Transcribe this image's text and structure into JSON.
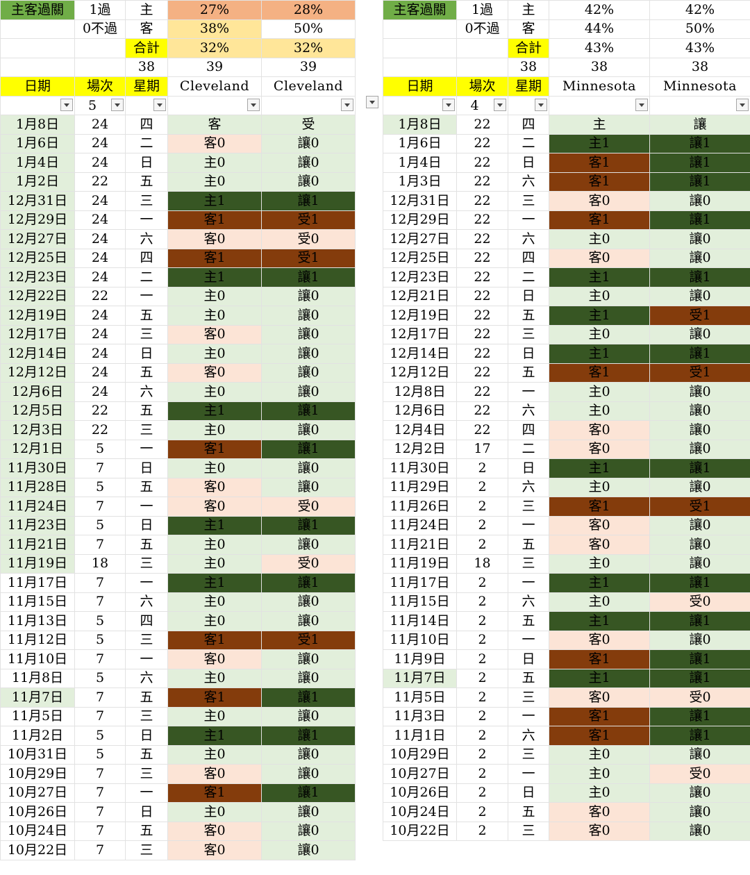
{
  "left": {
    "summary": {
      "title": "主客過關",
      "r1": {
        "label": "1過",
        "tag": "主",
        "p1": "27%",
        "p2": "28%"
      },
      "r2": {
        "label": "0不過",
        "tag": "客",
        "p1": "38%",
        "p2": "50%"
      },
      "r3": {
        "tag": "合計",
        "p1": "32%",
        "p2": "32%"
      },
      "r4": {
        "n0": "38",
        "n1": "39",
        "n2": "39"
      }
    },
    "headers": {
      "date": "日期",
      "game": "場次",
      "weekday": "星期",
      "team1": "Cleveland",
      "team2": "Cleveland"
    },
    "filter": {
      "game": "5"
    },
    "rows": [
      {
        "date": "1月8日",
        "game": "24",
        "wd": "四",
        "a": "客",
        "b": "受",
        "ac": "c-light",
        "bc": "c-light",
        "dg": true
      },
      {
        "date": "1月6日",
        "game": "24",
        "wd": "二",
        "a": "客0",
        "b": "讓0",
        "ac": "c-pink",
        "bc": "c-light",
        "dg": true
      },
      {
        "date": "1月4日",
        "game": "24",
        "wd": "日",
        "a": "主0",
        "b": "讓0",
        "ac": "c-light",
        "bc": "c-light",
        "dg": true
      },
      {
        "date": "1月2日",
        "game": "22",
        "wd": "五",
        "a": "主0",
        "b": "讓0",
        "ac": "c-light",
        "bc": "c-light",
        "dg": true
      },
      {
        "date": "12月31日",
        "game": "24",
        "wd": "三",
        "a": "主1",
        "b": "讓1",
        "ac": "c-dark",
        "bc": "c-dark",
        "dg": true
      },
      {
        "date": "12月29日",
        "game": "24",
        "wd": "一",
        "a": "客1",
        "b": "受1",
        "ac": "c-brown",
        "bc": "c-brown",
        "dg": true
      },
      {
        "date": "12月27日",
        "game": "24",
        "wd": "六",
        "a": "客0",
        "b": "受0",
        "ac": "c-pink",
        "bc": "c-pink",
        "dg": true
      },
      {
        "date": "12月25日",
        "game": "24",
        "wd": "四",
        "a": "客1",
        "b": "受1",
        "ac": "c-brown",
        "bc": "c-brown",
        "dg": true
      },
      {
        "date": "12月23日",
        "game": "24",
        "wd": "二",
        "a": "主1",
        "b": "讓1",
        "ac": "c-dark",
        "bc": "c-dark",
        "dg": true
      },
      {
        "date": "12月22日",
        "game": "22",
        "wd": "一",
        "a": "主0",
        "b": "讓0",
        "ac": "c-light",
        "bc": "c-light",
        "dg": true
      },
      {
        "date": "12月19日",
        "game": "24",
        "wd": "五",
        "a": "主0",
        "b": "讓0",
        "ac": "c-light",
        "bc": "c-light",
        "dg": true
      },
      {
        "date": "12月17日",
        "game": "24",
        "wd": "三",
        "a": "客0",
        "b": "讓0",
        "ac": "c-pink",
        "bc": "c-light",
        "dg": true
      },
      {
        "date": "12月14日",
        "game": "24",
        "wd": "日",
        "a": "主0",
        "b": "讓0",
        "ac": "c-light",
        "bc": "c-light",
        "dg": true
      },
      {
        "date": "12月12日",
        "game": "24",
        "wd": "五",
        "a": "客0",
        "b": "讓0",
        "ac": "c-pink",
        "bc": "c-light",
        "dg": true
      },
      {
        "date": "12月6日",
        "game": "24",
        "wd": "六",
        "a": "主0",
        "b": "讓0",
        "ac": "c-light",
        "bc": "c-light",
        "dg": true
      },
      {
        "date": "12月5日",
        "game": "22",
        "wd": "五",
        "a": "主1",
        "b": "讓1",
        "ac": "c-dark",
        "bc": "c-dark",
        "dg": true
      },
      {
        "date": "12月3日",
        "game": "22",
        "wd": "三",
        "a": "主0",
        "b": "讓0",
        "ac": "c-light",
        "bc": "c-light",
        "dg": true
      },
      {
        "date": "12月1日",
        "game": "5",
        "wd": "一",
        "a": "客1",
        "b": "讓1",
        "ac": "c-brown",
        "bc": "c-dark",
        "dg": true
      },
      {
        "date": "11月30日",
        "game": "7",
        "wd": "日",
        "a": "主0",
        "b": "讓0",
        "ac": "c-light",
        "bc": "c-light",
        "dg": true
      },
      {
        "date": "11月28日",
        "game": "5",
        "wd": "五",
        "a": "客0",
        "b": "讓0",
        "ac": "c-pink",
        "bc": "c-light",
        "dg": true
      },
      {
        "date": "11月24日",
        "game": "7",
        "wd": "一",
        "a": "客0",
        "b": "受0",
        "ac": "c-pink",
        "bc": "c-pink",
        "dg": true
      },
      {
        "date": "11月23日",
        "game": "5",
        "wd": "日",
        "a": "主1",
        "b": "讓1",
        "ac": "c-dark",
        "bc": "c-dark",
        "dg": true
      },
      {
        "date": "11月21日",
        "game": "7",
        "wd": "五",
        "a": "主0",
        "b": "讓0",
        "ac": "c-light",
        "bc": "c-light",
        "dg": true
      },
      {
        "date": "11月19日",
        "game": "18",
        "wd": "三",
        "a": "主0",
        "b": "受0",
        "ac": "c-light",
        "bc": "c-pink",
        "dg": true
      },
      {
        "date": "11月17日",
        "game": "7",
        "wd": "一",
        "a": "主1",
        "b": "讓1",
        "ac": "c-dark",
        "bc": "c-dark",
        "dg": false
      },
      {
        "date": "11月15日",
        "game": "7",
        "wd": "六",
        "a": "主0",
        "b": "讓0",
        "ac": "c-light",
        "bc": "c-light",
        "dg": false
      },
      {
        "date": "11月13日",
        "game": "5",
        "wd": "四",
        "a": "主0",
        "b": "讓0",
        "ac": "c-light",
        "bc": "c-light",
        "dg": false
      },
      {
        "date": "11月12日",
        "game": "5",
        "wd": "三",
        "a": "客1",
        "b": "受1",
        "ac": "c-brown",
        "bc": "c-brown",
        "dg": false
      },
      {
        "date": "11月10日",
        "game": "7",
        "wd": "一",
        "a": "客0",
        "b": "讓0",
        "ac": "c-pink",
        "bc": "c-light",
        "dg": false
      },
      {
        "date": "11月8日",
        "game": "5",
        "wd": "六",
        "a": "主0",
        "b": "讓0",
        "ac": "c-light",
        "bc": "c-light",
        "dg": false
      },
      {
        "date": "11月7日",
        "game": "7",
        "wd": "五",
        "a": "客1",
        "b": "讓1",
        "ac": "c-brown",
        "bc": "c-dark",
        "dg": true
      },
      {
        "date": "11月5日",
        "game": "7",
        "wd": "三",
        "a": "主0",
        "b": "讓0",
        "ac": "c-light",
        "bc": "c-light",
        "dg": false
      },
      {
        "date": "11月2日",
        "game": "5",
        "wd": "日",
        "a": "主1",
        "b": "讓1",
        "ac": "c-dark",
        "bc": "c-dark",
        "dg": false
      },
      {
        "date": "10月31日",
        "game": "5",
        "wd": "五",
        "a": "主0",
        "b": "讓0",
        "ac": "c-light",
        "bc": "c-light",
        "dg": false
      },
      {
        "date": "10月29日",
        "game": "7",
        "wd": "三",
        "a": "客0",
        "b": "讓0",
        "ac": "c-pink",
        "bc": "c-light",
        "dg": false
      },
      {
        "date": "10月27日",
        "game": "7",
        "wd": "一",
        "a": "客1",
        "b": "讓1",
        "ac": "c-brown",
        "bc": "c-dark",
        "dg": false
      },
      {
        "date": "10月26日",
        "game": "7",
        "wd": "日",
        "a": "主0",
        "b": "讓0",
        "ac": "c-light",
        "bc": "c-light",
        "dg": false
      },
      {
        "date": "10月24日",
        "game": "7",
        "wd": "五",
        "a": "客0",
        "b": "讓0",
        "ac": "c-pink",
        "bc": "c-light",
        "dg": false
      },
      {
        "date": "10月22日",
        "game": "7",
        "wd": "三",
        "a": "客0",
        "b": "讓0",
        "ac": "c-pink",
        "bc": "c-light",
        "dg": false
      }
    ]
  },
  "right": {
    "summary": {
      "title": "主客過關",
      "r1": {
        "label": "1過",
        "tag": "主",
        "p1": "42%",
        "p2": "42%"
      },
      "r2": {
        "label": "0不過",
        "tag": "客",
        "p1": "44%",
        "p2": "50%"
      },
      "r3": {
        "tag": "合計",
        "p1": "43%",
        "p2": "43%"
      },
      "r4": {
        "n0": "38",
        "n1": "38",
        "n2": "38"
      }
    },
    "headers": {
      "date": "日期",
      "game": "場次",
      "weekday": "星期",
      "team1": "Minnesota",
      "team2": "Minnesota"
    },
    "filter": {
      "game": "4"
    },
    "rows": [
      {
        "date": "1月8日",
        "game": "22",
        "wd": "四",
        "a": "主",
        "b": "讓",
        "ac": "c-light",
        "bc": "c-light",
        "dg": true
      },
      {
        "date": "1月6日",
        "game": "22",
        "wd": "二",
        "a": "主1",
        "b": "讓1",
        "ac": "c-dark",
        "bc": "c-dark",
        "dg": false
      },
      {
        "date": "1月4日",
        "game": "22",
        "wd": "日",
        "a": "客1",
        "b": "讓1",
        "ac": "c-brown",
        "bc": "c-dark",
        "dg": false
      },
      {
        "date": "1月3日",
        "game": "22",
        "wd": "六",
        "a": "客1",
        "b": "讓1",
        "ac": "c-brown",
        "bc": "c-dark",
        "dg": false
      },
      {
        "date": "12月31日",
        "game": "22",
        "wd": "三",
        "a": "客0",
        "b": "讓0",
        "ac": "c-pink",
        "bc": "c-light",
        "dg": false
      },
      {
        "date": "12月29日",
        "game": "22",
        "wd": "一",
        "a": "客1",
        "b": "讓1",
        "ac": "c-brown",
        "bc": "c-dark",
        "dg": false
      },
      {
        "date": "12月27日",
        "game": "22",
        "wd": "六",
        "a": "主0",
        "b": "讓0",
        "ac": "c-light",
        "bc": "c-light",
        "dg": false
      },
      {
        "date": "12月25日",
        "game": "22",
        "wd": "四",
        "a": "客0",
        "b": "讓0",
        "ac": "c-pink",
        "bc": "c-light",
        "dg": false
      },
      {
        "date": "12月23日",
        "game": "22",
        "wd": "二",
        "a": "主1",
        "b": "讓1",
        "ac": "c-dark",
        "bc": "c-dark",
        "dg": false
      },
      {
        "date": "12月21日",
        "game": "22",
        "wd": "日",
        "a": "主0",
        "b": "讓0",
        "ac": "c-light",
        "bc": "c-light",
        "dg": false
      },
      {
        "date": "12月19日",
        "game": "22",
        "wd": "五",
        "a": "主1",
        "b": "受1",
        "ac": "c-dark",
        "bc": "c-brown",
        "dg": false
      },
      {
        "date": "12月17日",
        "game": "22",
        "wd": "三",
        "a": "主0",
        "b": "讓0",
        "ac": "c-light",
        "bc": "c-light",
        "dg": false
      },
      {
        "date": "12月14日",
        "game": "22",
        "wd": "日",
        "a": "主1",
        "b": "讓1",
        "ac": "c-dark",
        "bc": "c-dark",
        "dg": false
      },
      {
        "date": "12月12日",
        "game": "22",
        "wd": "五",
        "a": "客1",
        "b": "受1",
        "ac": "c-brown",
        "bc": "c-brown",
        "dg": false
      },
      {
        "date": "12月8日",
        "game": "22",
        "wd": "一",
        "a": "主0",
        "b": "讓0",
        "ac": "c-light",
        "bc": "c-light",
        "dg": false
      },
      {
        "date": "12月6日",
        "game": "22",
        "wd": "六",
        "a": "主0",
        "b": "讓0",
        "ac": "c-light",
        "bc": "c-light",
        "dg": false
      },
      {
        "date": "12月4日",
        "game": "22",
        "wd": "四",
        "a": "客0",
        "b": "讓0",
        "ac": "c-pink",
        "bc": "c-light",
        "dg": false
      },
      {
        "date": "12月2日",
        "game": "17",
        "wd": "二",
        "a": "客0",
        "b": "讓0",
        "ac": "c-pink",
        "bc": "c-light",
        "dg": false
      },
      {
        "date": "11月30日",
        "game": "2",
        "wd": "日",
        "a": "主1",
        "b": "讓1",
        "ac": "c-dark",
        "bc": "c-dark",
        "dg": false
      },
      {
        "date": "11月29日",
        "game": "2",
        "wd": "六",
        "a": "主0",
        "b": "讓0",
        "ac": "c-light",
        "bc": "c-light",
        "dg": false
      },
      {
        "date": "11月26日",
        "game": "2",
        "wd": "三",
        "a": "客1",
        "b": "受1",
        "ac": "c-brown",
        "bc": "c-brown",
        "dg": false
      },
      {
        "date": "11月24日",
        "game": "2",
        "wd": "一",
        "a": "客0",
        "b": "讓0",
        "ac": "c-pink",
        "bc": "c-light",
        "dg": false
      },
      {
        "date": "11月21日",
        "game": "2",
        "wd": "五",
        "a": "客0",
        "b": "讓0",
        "ac": "c-pink",
        "bc": "c-light",
        "dg": false
      },
      {
        "date": "11月19日",
        "game": "18",
        "wd": "三",
        "a": "主0",
        "b": "讓0",
        "ac": "c-light",
        "bc": "c-light",
        "dg": false
      },
      {
        "date": "11月17日",
        "game": "2",
        "wd": "一",
        "a": "主1",
        "b": "讓1",
        "ac": "c-dark",
        "bc": "c-dark",
        "dg": false
      },
      {
        "date": "11月15日",
        "game": "2",
        "wd": "六",
        "a": "主0",
        "b": "受0",
        "ac": "c-light",
        "bc": "c-pink",
        "dg": false
      },
      {
        "date": "11月14日",
        "game": "2",
        "wd": "五",
        "a": "主1",
        "b": "讓1",
        "ac": "c-dark",
        "bc": "c-dark",
        "dg": false
      },
      {
        "date": "11月10日",
        "game": "2",
        "wd": "一",
        "a": "客0",
        "b": "讓0",
        "ac": "c-pink",
        "bc": "c-light",
        "dg": false
      },
      {
        "date": "11月9日",
        "game": "2",
        "wd": "日",
        "a": "客1",
        "b": "讓1",
        "ac": "c-brown",
        "bc": "c-dark",
        "dg": false
      },
      {
        "date": "11月7日",
        "game": "2",
        "wd": "五",
        "a": "主1",
        "b": "讓1",
        "ac": "c-dark",
        "bc": "c-dark",
        "dg": true
      },
      {
        "date": "11月5日",
        "game": "2",
        "wd": "三",
        "a": "客0",
        "b": "受0",
        "ac": "c-pink",
        "bc": "c-pink",
        "dg": false
      },
      {
        "date": "11月3日",
        "game": "2",
        "wd": "一",
        "a": "客1",
        "b": "讓1",
        "ac": "c-brown",
        "bc": "c-dark",
        "dg": false
      },
      {
        "date": "11月1日",
        "game": "2",
        "wd": "六",
        "a": "客1",
        "b": "讓1",
        "ac": "c-brown",
        "bc": "c-dark",
        "dg": false
      },
      {
        "date": "10月29日",
        "game": "2",
        "wd": "三",
        "a": "主0",
        "b": "讓0",
        "ac": "c-light",
        "bc": "c-light",
        "dg": false
      },
      {
        "date": "10月27日",
        "game": "2",
        "wd": "一",
        "a": "主0",
        "b": "受0",
        "ac": "c-light",
        "bc": "c-pink",
        "dg": false
      },
      {
        "date": "10月26日",
        "game": "2",
        "wd": "日",
        "a": "主0",
        "b": "讓0",
        "ac": "c-light",
        "bc": "c-light",
        "dg": false
      },
      {
        "date": "10月24日",
        "game": "2",
        "wd": "五",
        "a": "客0",
        "b": "讓0",
        "ac": "c-pink",
        "bc": "c-light",
        "dg": false
      },
      {
        "date": "10月22日",
        "game": "2",
        "wd": "三",
        "a": "客0",
        "b": "讓0",
        "ac": "c-pink",
        "bc": "c-light",
        "dg": false
      }
    ]
  }
}
